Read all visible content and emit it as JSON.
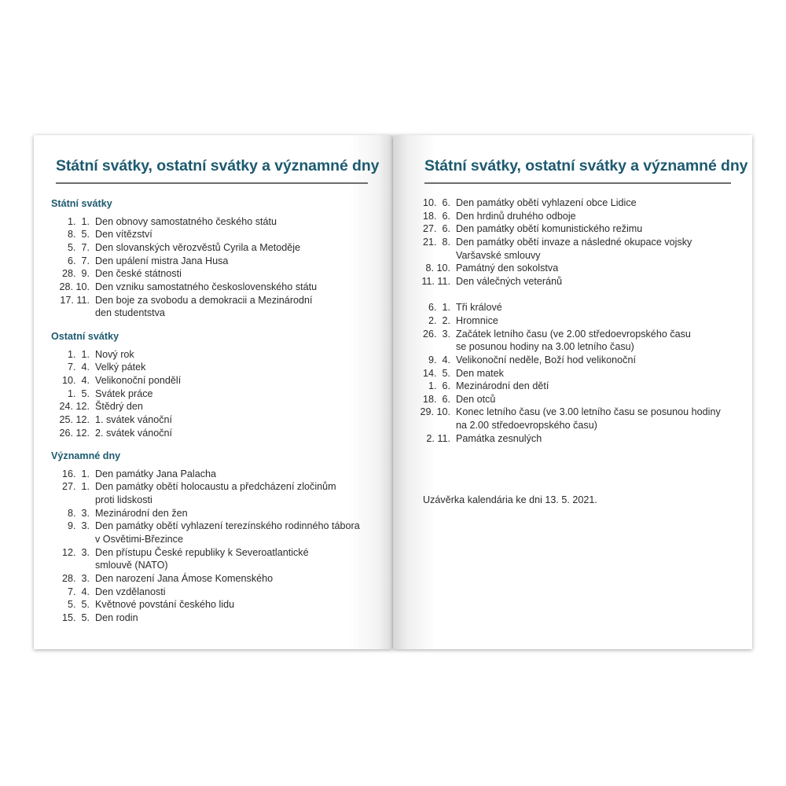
{
  "left": {
    "title": "Státní svátky, ostatní svátky a významné dny",
    "sections": [
      {
        "heading": "Státní svátky",
        "items": [
          {
            "date": "1.  1.",
            "lines": [
              "Den obnovy samostatného českého státu"
            ]
          },
          {
            "date": "8.  5.",
            "lines": [
              "Den vítězství"
            ]
          },
          {
            "date": "5.  7.",
            "lines": [
              "Den slovanských věrozvěstů Cyrila a Metoděje"
            ]
          },
          {
            "date": "6.  7.",
            "lines": [
              "Den upálení mistra Jana Husa"
            ]
          },
          {
            "date": "28.  9.",
            "lines": [
              "Den české státnosti"
            ]
          },
          {
            "date": "28. 10.",
            "lines": [
              "Den vzniku samostatného československého státu"
            ]
          },
          {
            "date": "17. 11.",
            "lines": [
              "Den boje za svobodu a demokracii a Mezinárodní",
              "den studentstva"
            ]
          }
        ]
      },
      {
        "heading": "Ostatní svátky",
        "items": [
          {
            "date": "1.  1.",
            "lines": [
              "Nový rok"
            ]
          },
          {
            "date": "7.  4.",
            "lines": [
              "Velký pátek"
            ]
          },
          {
            "date": "10.  4.",
            "lines": [
              "Velikonoční pondělí"
            ]
          },
          {
            "date": "1.  5.",
            "lines": [
              "Svátek práce"
            ]
          },
          {
            "date": "24. 12.",
            "lines": [
              "Štědrý den"
            ]
          },
          {
            "date": "25. 12.",
            "lines": [
              "1. svátek vánoční"
            ]
          },
          {
            "date": "26. 12.",
            "lines": [
              "2. svátek vánoční"
            ]
          }
        ]
      },
      {
        "heading": "Významné dny",
        "items": [
          {
            "date": "16.  1.",
            "lines": [
              "Den památky Jana Palacha"
            ]
          },
          {
            "date": "27.  1.",
            "lines": [
              "Den památky obětí holocaustu a předcházení zločinům",
              "proti lidskosti"
            ]
          },
          {
            "date": "8.  3.",
            "lines": [
              "Mezinárodní den žen"
            ]
          },
          {
            "date": "9.  3.",
            "lines": [
              "Den památky obětí vyhlazení terezínského rodinného tábora",
              "v Osvětimi-Březince"
            ]
          },
          {
            "date": "12.  3.",
            "lines": [
              "Den přístupu České republiky k Severoatlantické",
              "smlouvě (NATO)"
            ]
          },
          {
            "date": "28.  3.",
            "lines": [
              "Den narození Jana Ámose Komenského"
            ]
          },
          {
            "date": "7.  4.",
            "lines": [
              "Den vzdělanosti"
            ]
          },
          {
            "date": "5.  5.",
            "lines": [
              "Květnové povstání českého lidu"
            ]
          },
          {
            "date": "15.  5.",
            "lines": [
              "Den rodin"
            ]
          }
        ]
      }
    ]
  },
  "right": {
    "title": "Státní svátky, ostatní svátky a významné dny",
    "groups": [
      {
        "items": [
          {
            "date": "10.  6.",
            "lines": [
              "Den památky obětí vyhlazení obce Lidice"
            ]
          },
          {
            "date": "18.  6.",
            "lines": [
              "Den hrdinů druhého odboje"
            ]
          },
          {
            "date": "27.  6.",
            "lines": [
              "Den památky obětí komunistického režimu"
            ]
          },
          {
            "date": "21.  8.",
            "lines": [
              "Den památky obětí invaze a následné okupace vojsky",
              "Varšavské smlouvy"
            ]
          },
          {
            "date": "8. 10.",
            "lines": [
              "Památný den sokolstva"
            ]
          },
          {
            "date": "11. 11.",
            "lines": [
              "Den válečných veteránů"
            ]
          }
        ]
      },
      {
        "items": [
          {
            "date": "6.  1.",
            "lines": [
              "Tři králové"
            ]
          },
          {
            "date": "2.  2.",
            "lines": [
              "Hromnice"
            ]
          },
          {
            "date": "26.  3.",
            "lines": [
              "Začátek letního času (ve 2.00 středoevropského času",
              "se posunou hodiny na 3.00 letního času)"
            ]
          },
          {
            "date": "9.  4.",
            "lines": [
              "Velikonoční neděle, Boží hod velikonoční"
            ]
          },
          {
            "date": "14.  5.",
            "lines": [
              "Den matek"
            ]
          },
          {
            "date": "1.  6.",
            "lines": [
              "Mezinárodní den dětí"
            ]
          },
          {
            "date": "18.  6.",
            "lines": [
              "Den otců"
            ]
          },
          {
            "date": "29. 10.",
            "lines": [
              "Konec letního času (ve 3.00 letního času se posunou hodiny",
              "na 2.00 středoevropského času)"
            ]
          },
          {
            "date": "2. 11.",
            "lines": [
              "Památka zesnulých"
            ]
          }
        ]
      }
    ],
    "footer": "Uzávěrka kalendária ke dni 13. 5. 2021."
  }
}
